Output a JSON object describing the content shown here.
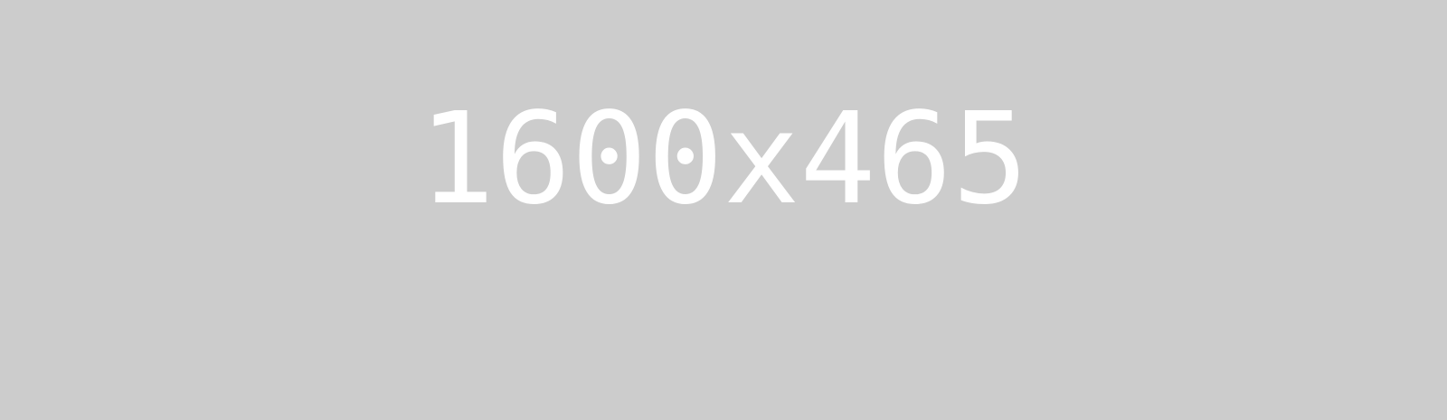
{
  "placeholder": {
    "label": "1600x465",
    "background_color": "#cccccc",
    "text_color": "#ffffff"
  }
}
